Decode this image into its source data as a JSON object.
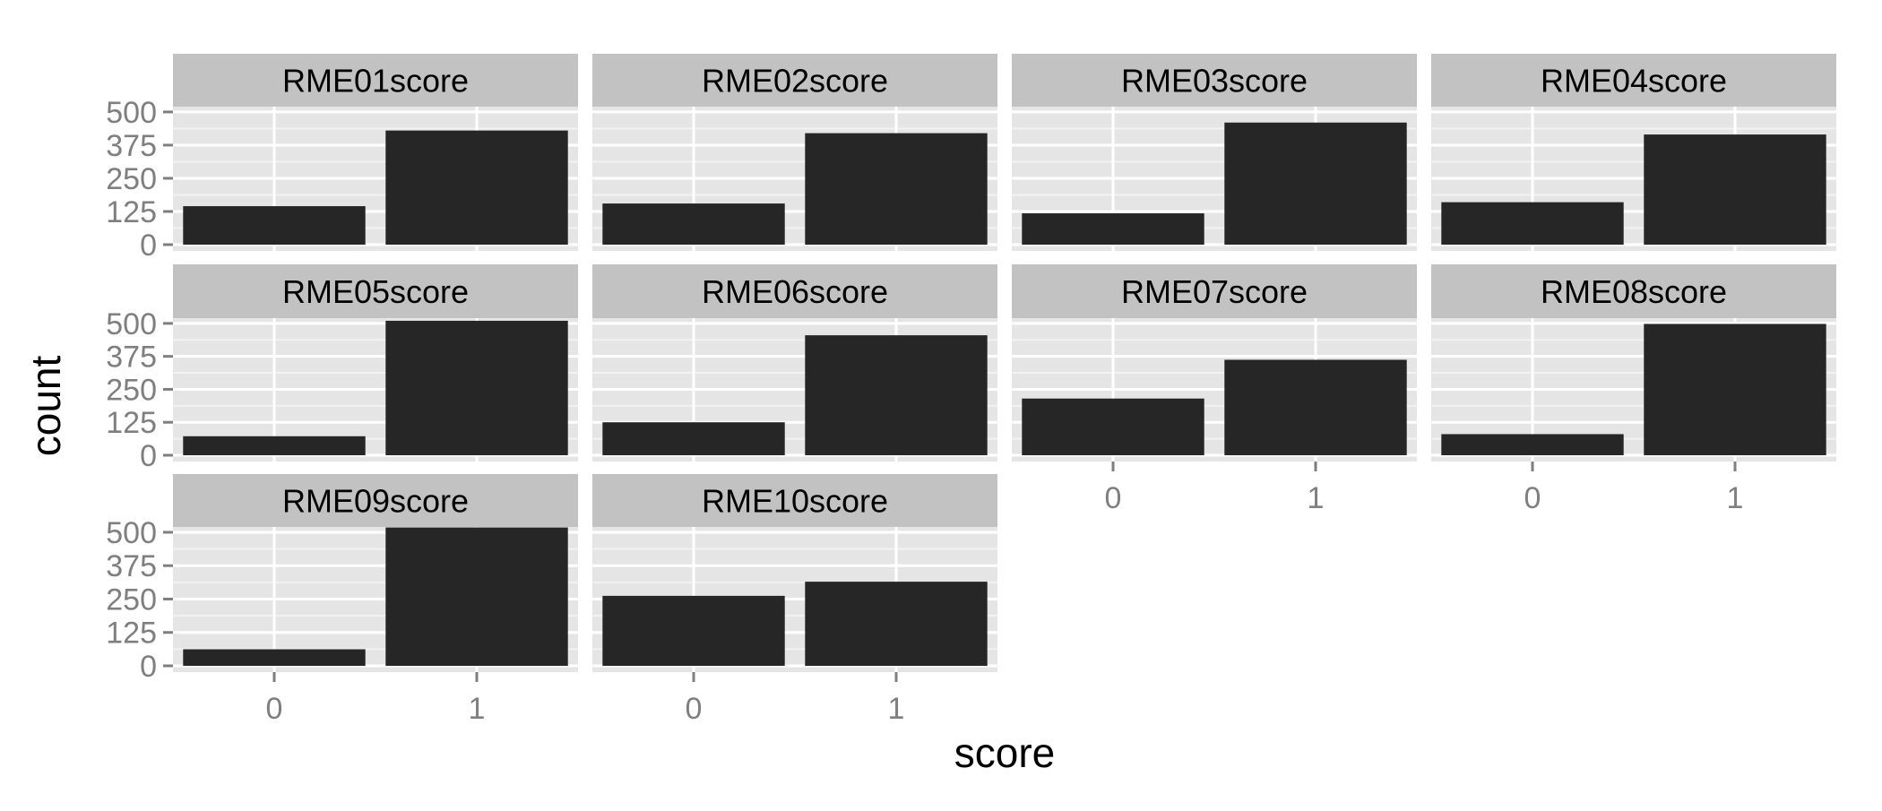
{
  "chart_data": {
    "type": "bar",
    "layout": "facet-wrap",
    "xlabel": "score",
    "ylabel": "count",
    "categories": [
      "0",
      "1"
    ],
    "ylim": [
      0,
      520
    ],
    "yticks": [
      0,
      125,
      250,
      375,
      500
    ],
    "grid": true,
    "colors": {
      "bar": "#262626",
      "panel_bg": "#e5e5e5",
      "strip_bg": "#c2c2c2",
      "grid_major": "#ffffff",
      "grid_minor": "#f2f2f2",
      "tick_text": "#7f7f7f",
      "title_text": "#000000"
    },
    "panels": [
      {
        "name": "RME01score",
        "values": [
          145,
          430
        ]
      },
      {
        "name": "RME02score",
        "values": [
          155,
          420
        ]
      },
      {
        "name": "RME03score",
        "values": [
          118,
          460
        ]
      },
      {
        "name": "RME04score",
        "values": [
          160,
          415
        ]
      },
      {
        "name": "RME05score",
        "values": [
          72,
          510
        ]
      },
      {
        "name": "RME06score",
        "values": [
          125,
          455
        ]
      },
      {
        "name": "RME07score",
        "values": [
          215,
          362
        ]
      },
      {
        "name": "RME08score",
        "values": [
          80,
          498
        ]
      },
      {
        "name": "RME09score",
        "values": [
          62,
          518
        ]
      },
      {
        "name": "RME10score",
        "values": [
          262,
          315
        ]
      }
    ]
  }
}
